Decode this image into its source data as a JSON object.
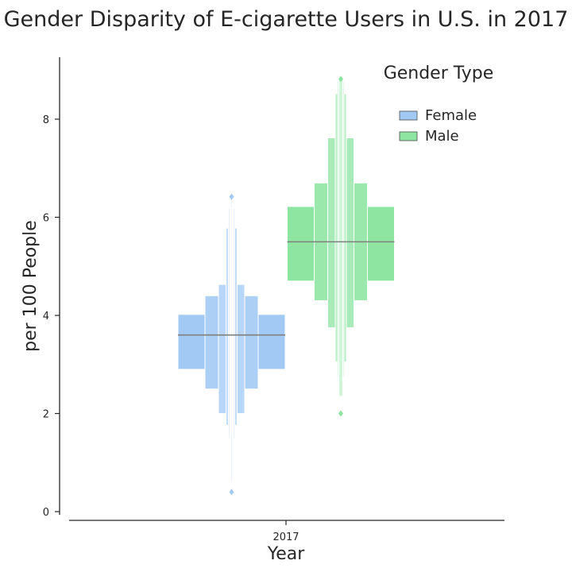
{
  "chart_data": {
    "type": "boxen",
    "title": "Gender Disparity of E-cigarette Users in U.S. in 2017",
    "xlabel": "Year",
    "ylabel": "per 100 People",
    "categories": [
      "2017"
    ],
    "ylim": [
      -0.1,
      9.3
    ],
    "yticks": [
      0,
      2,
      4,
      6,
      8
    ],
    "grid": false,
    "legend": {
      "title": "Gender Type",
      "placement": "top-right",
      "entries": [
        "Female",
        "Male"
      ]
    },
    "series": [
      {
        "name": "Female",
        "color": "#a1c9f4",
        "median": 3.6,
        "boxes": [
          [
            2.9,
            4.02
          ],
          [
            2.5,
            4.4
          ],
          [
            2.0,
            4.63
          ],
          [
            1.76,
            5.78
          ],
          [
            1.5,
            6.18
          ],
          [
            1.2,
            6.32
          ],
          [
            0.9,
            6.4
          ],
          [
            0.6,
            6.42
          ]
        ],
        "outliers": [
          0.4,
          6.42
        ]
      },
      {
        "name": "Male",
        "color": "#8de5a1",
        "median": 5.5,
        "boxes": [
          [
            4.7,
            6.22
          ],
          [
            4.3,
            6.7
          ],
          [
            3.75,
            7.62
          ],
          [
            3.05,
            8.52
          ],
          [
            2.75,
            8.77
          ],
          [
            2.35,
            8.82
          ]
        ],
        "outliers": [
          2.0,
          8.82
        ]
      }
    ]
  }
}
